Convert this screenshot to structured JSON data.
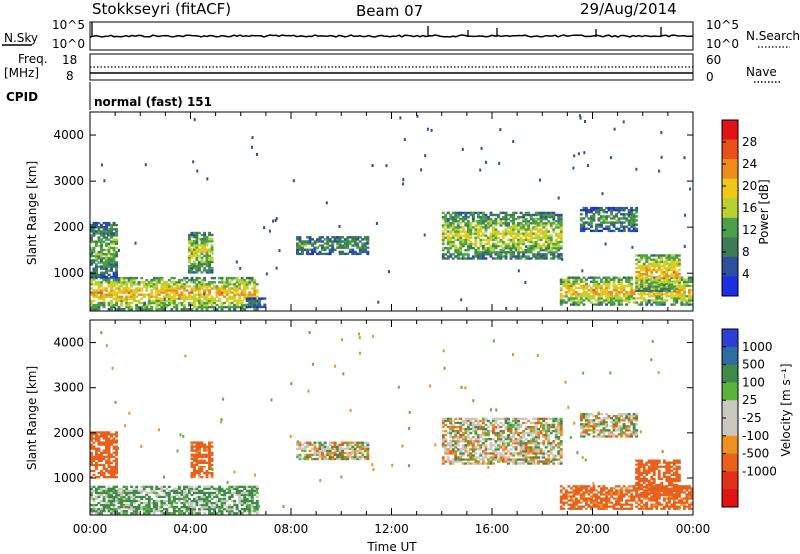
{
  "header": {
    "station": "Stokkseyri (fitACF)",
    "beam": "Beam 07",
    "date": "29/Aug/2014"
  },
  "top_panel": {
    "left_label": "N.Sky",
    "right_label": "N.Search",
    "left_ticks": [
      "10^5",
      "10^0"
    ],
    "right_ticks": [
      "10^5",
      "10^0"
    ],
    "freq_label_1": "Freq.",
    "freq_label_2": "[MHz]",
    "freq_ticks": [
      "18",
      "8"
    ],
    "nave_label": "Nave",
    "nave_ticks": [
      "60",
      "0"
    ],
    "cpid_label": "CPID",
    "cpid_value": "normal (fast) 151"
  },
  "colors": {
    "power_scale": [
      "#1f2de0",
      "#2c4fa0",
      "#3f7a56",
      "#4aa04a",
      "#b8d232",
      "#f0c818",
      "#f08c1c",
      "#e8501c",
      "#e01414"
    ],
    "velocity_scale": [
      "#2d3fd6",
      "#2f6aa0",
      "#3f8a48",
      "#5ab33c",
      "#c8c8c0",
      "#c8c8c0",
      "#f0901e",
      "#e8601c",
      "#e03018",
      "#e01414"
    ],
    "velocity_gray": "#c8c8c0"
  },
  "chart_data": [
    {
      "type": "heatmap",
      "name": "power",
      "ylabel": "Slant Range [km]",
      "yticks": [
        "4000",
        "3000",
        "2000",
        "1000"
      ],
      "ylim": [
        180,
        4500
      ],
      "xlim_hours": [
        0,
        24
      ],
      "colorbar_label": "Power [dB]",
      "colorbar_ticks": [
        "28",
        "24",
        "20",
        "16",
        "12",
        "8",
        "4"
      ],
      "colorbar_range": [
        0,
        32
      ],
      "echo_regions": [
        {
          "t": [
            0.0,
            6.6
          ],
          "r": [
            200,
            900
          ],
          "level": 22
        },
        {
          "t": [
            0.0,
            1.0
          ],
          "r": [
            900,
            2100
          ],
          "level": 14
        },
        {
          "t": [
            3.9,
            4.8
          ],
          "r": [
            1000,
            1900
          ],
          "level": 18
        },
        {
          "t": [
            6.2,
            6.9
          ],
          "r": [
            250,
            450
          ],
          "level": 10
        },
        {
          "t": [
            8.2,
            11.0
          ],
          "r": [
            1400,
            1800
          ],
          "level": 12
        },
        {
          "t": [
            14.0,
            18.8
          ],
          "r": [
            1300,
            2300
          ],
          "level": 18
        },
        {
          "t": [
            18.7,
            24.0
          ],
          "r": [
            300,
            900
          ],
          "level": 22
        },
        {
          "t": [
            19.5,
            21.8
          ],
          "r": [
            1900,
            2400
          ],
          "level": 12
        },
        {
          "t": [
            21.7,
            23.5
          ],
          "r": [
            600,
            1400
          ],
          "level": 22
        }
      ]
    },
    {
      "type": "heatmap",
      "name": "velocity",
      "ylabel": "Slant Range [km]",
      "yticks": [
        "4000",
        "3000",
        "2000",
        "1000"
      ],
      "ylim": [
        180,
        4500
      ],
      "xlim_hours": [
        0,
        24
      ],
      "xticks": [
        "00:00",
        "04:00",
        "08:00",
        "12:00",
        "16:00",
        "20:00",
        "00:00"
      ],
      "xlabel": "Time UT",
      "colorbar_label": "Velocity [m s⁻¹]",
      "colorbar_ticks": [
        "1000",
        "500",
        "100",
        "25",
        "-25",
        "-100",
        "-500",
        "-1000"
      ],
      "echo_regions": [
        {
          "t": [
            0.0,
            6.6
          ],
          "r": [
            200,
            800
          ],
          "vel": 120
        },
        {
          "t": [
            0.0,
            1.0
          ],
          "r": [
            1000,
            2000
          ],
          "vel": -300
        },
        {
          "t": [
            4.0,
            4.8
          ],
          "r": [
            1000,
            1800
          ],
          "vel": -200
        },
        {
          "t": [
            8.2,
            11.0
          ],
          "r": [
            1400,
            1800
          ],
          "vel": 0
        },
        {
          "t": [
            14.0,
            18.8
          ],
          "r": [
            1300,
            2300
          ],
          "vel": 0
        },
        {
          "t": [
            18.7,
            24.0
          ],
          "r": [
            300,
            800
          ],
          "vel": -200
        },
        {
          "t": [
            19.5,
            21.8
          ],
          "r": [
            1900,
            2400
          ],
          "vel": 0
        },
        {
          "t": [
            21.7,
            23.5
          ],
          "r": [
            600,
            1400
          ],
          "vel": -350
        }
      ]
    }
  ]
}
